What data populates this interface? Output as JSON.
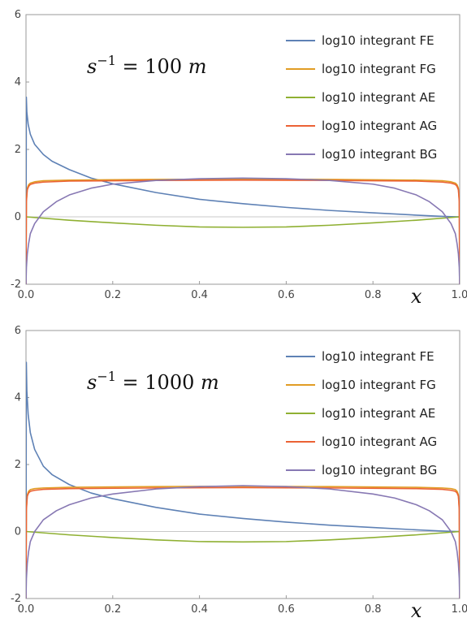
{
  "chart_data": [
    {
      "type": "line",
      "annotation": {
        "base": "s",
        "exp": "−1",
        "eq": " = 100 ",
        "unit": "m"
      },
      "xlabel": "x",
      "ylabel": "",
      "xlim": [
        0,
        1
      ],
      "ylim": [
        -2,
        6
      ],
      "xticks": [
        "0.0",
        "0.2",
        "0.4",
        "0.6",
        "0.8",
        "1.0"
      ],
      "yticks": [
        "-2",
        "0",
        "2",
        "4",
        "6"
      ],
      "legend_position": "top-right",
      "series": [
        {
          "name": "log10 integrant FE",
          "color": "#5e81b5",
          "x": [
            0,
            0.0008,
            0.002,
            0.005,
            0.01,
            0.02,
            0.04,
            0.06,
            0.1,
            0.15,
            0.2,
            0.3,
            0.4,
            0.5,
            0.6,
            0.7,
            0.8,
            0.9,
            0.95,
            0.98,
            1.0
          ],
          "y": [
            -2,
            3.55,
            3.1,
            2.75,
            2.45,
            2.15,
            1.85,
            1.65,
            1.4,
            1.15,
            0.98,
            0.72,
            0.52,
            0.39,
            0.28,
            0.19,
            0.12,
            0.05,
            0.02,
            0.005,
            0
          ]
        },
        {
          "name": "log10 integrant FG",
          "color": "#e19c24",
          "x": [
            0,
            0.001,
            0.003,
            0.006,
            0.01,
            0.02,
            0.04,
            0.1,
            0.3,
            0.5,
            0.7,
            0.9,
            0.96,
            0.98,
            0.99,
            0.994,
            0.997,
            0.999,
            1.0
          ],
          "y": [
            -2,
            0.5,
            0.85,
            0.95,
            1.0,
            1.04,
            1.07,
            1.09,
            1.11,
            1.12,
            1.11,
            1.09,
            1.07,
            1.04,
            1.0,
            0.95,
            0.85,
            0.5,
            -2
          ]
        },
        {
          "name": "log10 integrant AE",
          "color": "#8fb032",
          "x": [
            0,
            0.1,
            0.2,
            0.3,
            0.4,
            0.5,
            0.6,
            0.7,
            0.8,
            0.9,
            1.0
          ],
          "y": [
            0,
            -0.1,
            -0.18,
            -0.25,
            -0.3,
            -0.31,
            -0.3,
            -0.25,
            -0.18,
            -0.1,
            0
          ]
        },
        {
          "name": "log10 integrant AG",
          "color": "#eb6235",
          "x": [
            0,
            0.001,
            0.003,
            0.006,
            0.01,
            0.02,
            0.04,
            0.1,
            0.3,
            0.5,
            0.7,
            0.9,
            0.96,
            0.98,
            0.99,
            0.994,
            0.997,
            0.999,
            1.0
          ],
          "y": [
            -2,
            0.45,
            0.8,
            0.9,
            0.96,
            1.0,
            1.03,
            1.06,
            1.08,
            1.09,
            1.08,
            1.06,
            1.03,
            1.0,
            0.96,
            0.9,
            0.8,
            0.45,
            -2
          ]
        },
        {
          "name": "log10 integrant BG",
          "color": "#8778b3",
          "x": [
            0,
            0.001,
            0.003,
            0.006,
            0.01,
            0.02,
            0.04,
            0.07,
            0.1,
            0.15,
            0.2,
            0.3,
            0.4,
            0.5,
            0.6,
            0.7,
            0.8,
            0.85,
            0.9,
            0.93,
            0.96,
            0.98,
            0.99,
            0.994,
            0.997,
            0.999,
            1.0
          ],
          "y": [
            -2,
            -1.5,
            -1.1,
            -0.8,
            -0.5,
            -0.2,
            0.15,
            0.45,
            0.65,
            0.85,
            0.97,
            1.08,
            1.13,
            1.15,
            1.13,
            1.08,
            0.97,
            0.85,
            0.65,
            0.45,
            0.15,
            -0.2,
            -0.5,
            -0.8,
            -1.1,
            -1.5,
            -2
          ]
        }
      ]
    },
    {
      "type": "line",
      "annotation": {
        "base": "s",
        "exp": "−1",
        "eq": " = 1000 ",
        "unit": "m"
      },
      "xlabel": "x",
      "ylabel": "",
      "xlim": [
        0,
        1
      ],
      "ylim": [
        -2,
        6
      ],
      "xticks": [
        "0.0",
        "0.2",
        "0.4",
        "0.6",
        "0.8",
        "1.0"
      ],
      "yticks": [
        "-2",
        "0",
        "2",
        "4",
        "6"
      ],
      "legend_position": "top-right",
      "series": [
        {
          "name": "log10 integrant FE",
          "color": "#5e81b5",
          "x": [
            0,
            0.0008,
            0.002,
            0.005,
            0.01,
            0.02,
            0.04,
            0.06,
            0.1,
            0.15,
            0.2,
            0.3,
            0.4,
            0.5,
            0.6,
            0.7,
            0.8,
            0.9,
            0.95,
            0.98,
            1.0
          ],
          "y": [
            -2,
            5.05,
            4.2,
            3.5,
            2.95,
            2.45,
            1.95,
            1.7,
            1.4,
            1.15,
            0.98,
            0.72,
            0.52,
            0.39,
            0.28,
            0.19,
            0.12,
            0.05,
            0.02,
            0.005,
            0
          ]
        },
        {
          "name": "log10 integrant FG",
          "color": "#e19c24",
          "x": [
            0,
            0.001,
            0.003,
            0.006,
            0.01,
            0.02,
            0.04,
            0.1,
            0.3,
            0.5,
            0.7,
            0.9,
            0.96,
            0.98,
            0.99,
            0.994,
            0.997,
            0.999,
            1.0
          ],
          "y": [
            -2,
            0.7,
            1.1,
            1.2,
            1.25,
            1.28,
            1.3,
            1.32,
            1.34,
            1.35,
            1.34,
            1.32,
            1.3,
            1.28,
            1.25,
            1.2,
            1.1,
            0.7,
            -2
          ]
        },
        {
          "name": "log10 integrant AE",
          "color": "#8fb032",
          "x": [
            0,
            0.1,
            0.2,
            0.3,
            0.4,
            0.5,
            0.6,
            0.7,
            0.8,
            0.9,
            1.0
          ],
          "y": [
            0,
            -0.1,
            -0.18,
            -0.25,
            -0.3,
            -0.31,
            -0.3,
            -0.25,
            -0.18,
            -0.1,
            0
          ]
        },
        {
          "name": "log10 integrant AG",
          "color": "#eb6235",
          "x": [
            0,
            0.001,
            0.003,
            0.006,
            0.01,
            0.02,
            0.04,
            0.1,
            0.3,
            0.5,
            0.7,
            0.9,
            0.96,
            0.98,
            0.99,
            0.994,
            0.997,
            0.999,
            1.0
          ],
          "y": [
            -2,
            0.65,
            1.05,
            1.15,
            1.2,
            1.23,
            1.26,
            1.28,
            1.3,
            1.31,
            1.3,
            1.28,
            1.26,
            1.23,
            1.2,
            1.15,
            1.05,
            0.65,
            -2
          ]
        },
        {
          "name": "log10 integrant BG",
          "color": "#8778b3",
          "x": [
            0,
            0.001,
            0.003,
            0.006,
            0.01,
            0.02,
            0.04,
            0.07,
            0.1,
            0.15,
            0.2,
            0.3,
            0.4,
            0.5,
            0.6,
            0.7,
            0.8,
            0.85,
            0.9,
            0.93,
            0.96,
            0.98,
            0.99,
            0.994,
            0.997,
            0.999,
            1.0
          ],
          "y": [
            -2,
            -1.4,
            -0.95,
            -0.6,
            -0.3,
            0.0,
            0.35,
            0.62,
            0.8,
            1.0,
            1.12,
            1.27,
            1.34,
            1.37,
            1.34,
            1.27,
            1.12,
            1.0,
            0.8,
            0.62,
            0.35,
            0.0,
            -0.3,
            -0.6,
            -0.95,
            -1.4,
            -2
          ]
        }
      ]
    }
  ]
}
